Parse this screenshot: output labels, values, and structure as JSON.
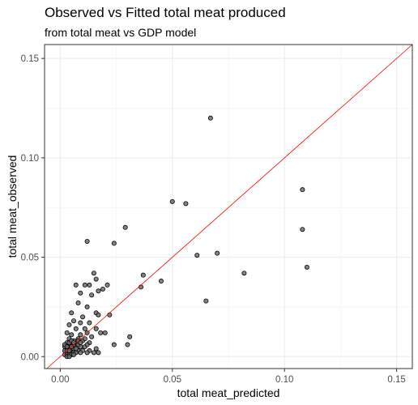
{
  "chart_data": {
    "type": "scatter",
    "title": "Observed vs Fitted total meat produced",
    "subtitle": "from total meat vs GDP model",
    "xlabel": "total meat_predicted",
    "ylabel": "total meat_observed",
    "xlim": [
      -0.007,
      0.157
    ],
    "ylim": [
      -0.006,
      0.157
    ],
    "xticks": [
      0.0,
      0.05,
      0.1,
      0.15
    ],
    "yticks": [
      0.0,
      0.05,
      0.1,
      0.15
    ],
    "xtick_labels": [
      "0.00",
      "0.05",
      "0.10",
      "0.15"
    ],
    "ytick_labels": [
      "0.00",
      "0.05",
      "0.10",
      "0.15"
    ],
    "grid": true,
    "reference_line": {
      "type": "identity",
      "color": "#ff0000"
    },
    "point_color": "#6e6e6e",
    "points": [
      [
        0.067,
        0.12
      ],
      [
        0.108,
        0.084
      ],
      [
        0.108,
        0.064
      ],
      [
        0.11,
        0.045
      ],
      [
        0.082,
        0.042
      ],
      [
        0.05,
        0.078
      ],
      [
        0.056,
        0.077
      ],
      [
        0.029,
        0.065
      ],
      [
        0.061,
        0.051
      ],
      [
        0.07,
        0.052
      ],
      [
        0.065,
        0.028
      ],
      [
        0.045,
        0.038
      ],
      [
        0.037,
        0.041
      ],
      [
        0.036,
        0.035
      ],
      [
        0.024,
        0.057
      ],
      [
        0.012,
        0.058
      ],
      [
        0.015,
        0.042
      ],
      [
        0.016,
        0.039
      ],
      [
        0.013,
        0.036
      ],
      [
        0.017,
        0.033
      ],
      [
        0.011,
        0.036
      ],
      [
        0.021,
        0.036
      ],
      [
        0.007,
        0.036
      ],
      [
        0.019,
        0.034
      ],
      [
        0.014,
        0.031
      ],
      [
        0.009,
        0.032
      ],
      [
        0.008,
        0.027
      ],
      [
        0.012,
        0.025
      ],
      [
        0.016,
        0.022
      ],
      [
        0.017,
        0.021
      ],
      [
        0.022,
        0.021
      ],
      [
        0.01,
        0.02
      ],
      [
        0.005,
        0.022
      ],
      [
        0.006,
        0.018
      ],
      [
        0.013,
        0.017
      ],
      [
        0.009,
        0.017
      ],
      [
        0.004,
        0.016
      ],
      [
        0.007,
        0.014
      ],
      [
        0.011,
        0.014
      ],
      [
        0.016,
        0.014
      ],
      [
        0.012,
        0.012
      ],
      [
        0.018,
        0.012
      ],
      [
        0.003,
        0.012
      ],
      [
        0.005,
        0.011
      ],
      [
        0.009,
        0.011
      ],
      [
        0.014,
        0.01
      ],
      [
        0.02,
        0.012
      ],
      [
        0.031,
        0.01
      ],
      [
        0.004,
        0.009
      ],
      [
        0.006,
        0.008
      ],
      [
        0.008,
        0.009
      ],
      [
        0.01,
        0.008
      ],
      [
        0.013,
        0.007
      ],
      [
        0.024,
        0.006
      ],
      [
        0.03,
        0.006
      ],
      [
        0.003,
        0.007
      ],
      [
        0.005,
        0.006
      ],
      [
        0.007,
        0.006
      ],
      [
        0.009,
        0.005
      ],
      [
        0.011,
        0.005
      ],
      [
        0.016,
        0.004
      ],
      [
        0.002,
        0.005
      ],
      [
        0.003,
        0.004
      ],
      [
        0.004,
        0.005
      ],
      [
        0.005,
        0.004
      ],
      [
        0.006,
        0.004
      ],
      [
        0.008,
        0.003
      ],
      [
        0.01,
        0.003
      ],
      [
        0.013,
        0.003
      ],
      [
        0.002,
        0.003
      ],
      [
        0.003,
        0.003
      ],
      [
        0.004,
        0.002
      ],
      [
        0.005,
        0.002
      ],
      [
        0.006,
        0.002
      ],
      [
        0.007,
        0.002
      ],
      [
        0.009,
        0.002
      ],
      [
        0.012,
        0.002
      ],
      [
        0.015,
        0.002
      ],
      [
        0.017,
        0.002
      ],
      [
        0.002,
        0.001
      ],
      [
        0.003,
        0.001
      ],
      [
        0.004,
        0.001
      ],
      [
        0.005,
        0.001
      ],
      [
        0.006,
        0.001
      ],
      [
        0.003,
        0.0
      ],
      [
        0.004,
        0.0
      ],
      [
        0.002,
        0.006
      ],
      [
        0.004,
        0.007
      ],
      [
        0.005,
        0.008
      ],
      [
        0.006,
        0.006
      ],
      [
        0.007,
        0.004
      ],
      [
        0.008,
        0.006
      ],
      [
        0.004,
        0.003
      ],
      [
        0.003,
        0.005
      ],
      [
        0.005,
        0.005
      ],
      [
        0.006,
        0.007
      ],
      [
        0.008,
        0.008
      ],
      [
        0.011,
        0.009
      ],
      [
        0.009,
        0.007
      ],
      [
        0.012,
        0.006
      ]
    ]
  }
}
